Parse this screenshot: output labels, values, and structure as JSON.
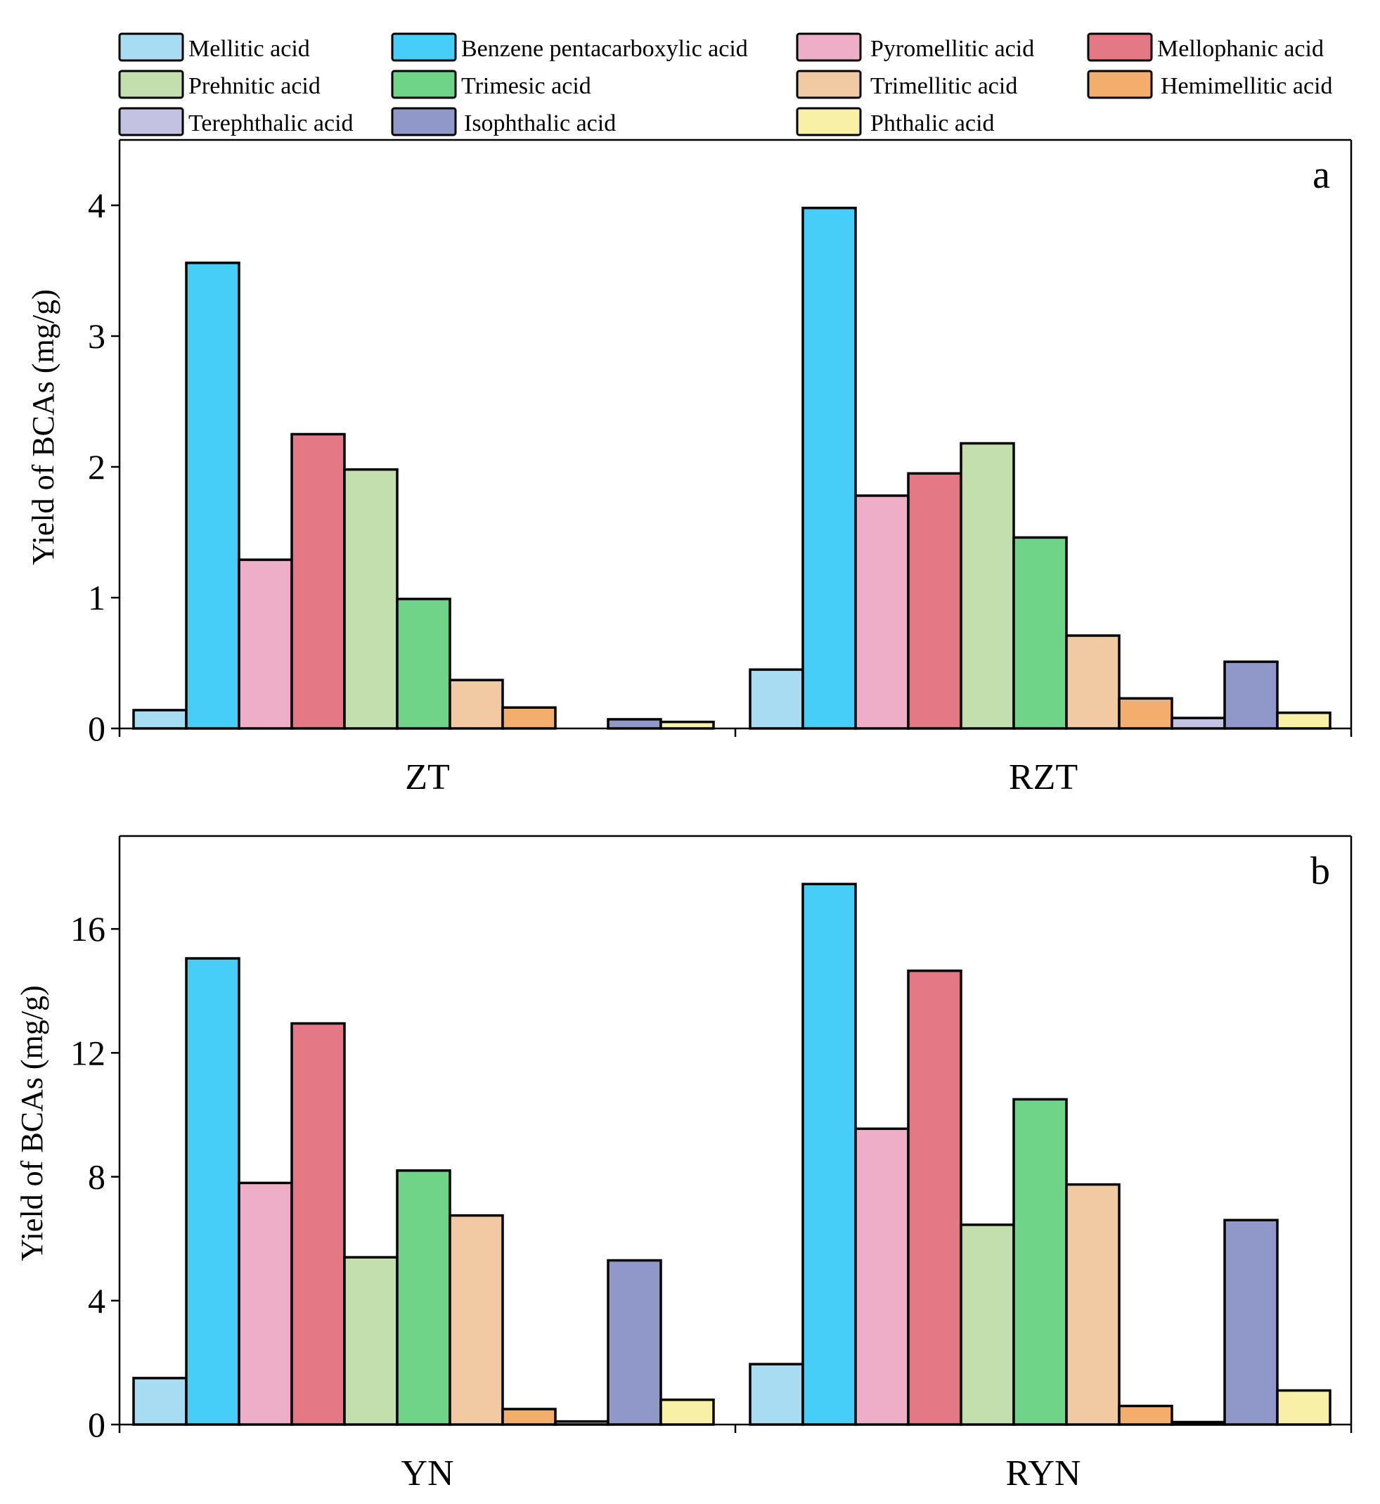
{
  "legend": {
    "items": [
      {
        "label": "Mellitic acid",
        "color": "#a8dcf2"
      },
      {
        "label": "Benzene pentacarboxylic acid",
        "color": "#46cef9"
      },
      {
        "label": "Pyromellitic acid",
        "color": "#efaec8"
      },
      {
        "label": "Mellophanic acid",
        "color": "#e47884"
      },
      {
        "label": "Prehnitic acid",
        "color": "#c3dfae"
      },
      {
        "label": "Trimesic acid",
        "color": "#6fd388"
      },
      {
        "label": "Trimellitic acid",
        "color": "#f1c9a3"
      },
      {
        "label": "Hemimellitic acid",
        "color": "#f3ae6e"
      },
      {
        "label": "Terephthalic acid",
        "color": "#c3c2e2"
      },
      {
        "label": "Isophthalic acid",
        "color": "#8f98c9"
      },
      {
        "label": "Phthalic acid",
        "color": "#f8f0a6"
      }
    ]
  },
  "chart_data": [
    {
      "type": "bar",
      "panel_label": "a",
      "ylabel": "Yield of BCAs (mg/g)",
      "ylim": [
        0,
        4.5
      ],
      "yticks": [
        0,
        1,
        2,
        3,
        4
      ],
      "categories": [
        "ZT",
        "RZT"
      ],
      "series": [
        {
          "name": "Mellitic acid",
          "values": [
            0.14,
            0.45
          ]
        },
        {
          "name": "Benzene pentacarboxylic acid",
          "values": [
            3.56,
            3.98
          ]
        },
        {
          "name": "Pyromellitic acid",
          "values": [
            1.29,
            1.78
          ]
        },
        {
          "name": "Mellophanic acid",
          "values": [
            2.25,
            1.95
          ]
        },
        {
          "name": "Prehnitic acid",
          "values": [
            1.98,
            2.18
          ]
        },
        {
          "name": "Trimesic acid",
          "values": [
            0.99,
            1.46
          ]
        },
        {
          "name": "Trimellitic acid",
          "values": [
            0.37,
            0.71
          ]
        },
        {
          "name": "Hemimellitic acid",
          "values": [
            0.16,
            0.23
          ]
        },
        {
          "name": "Terephthalic acid",
          "values": [
            0.0,
            0.08
          ]
        },
        {
          "name": "Isophthalic acid",
          "values": [
            0.07,
            0.51
          ]
        },
        {
          "name": "Phthalic acid",
          "values": [
            0.05,
            0.12
          ]
        }
      ]
    },
    {
      "type": "bar",
      "panel_label": "b",
      "ylabel": "Yield of BCAs (mg/g)",
      "ylim": [
        0,
        19
      ],
      "yticks": [
        0,
        4,
        8,
        12,
        16
      ],
      "categories": [
        "YN",
        "RYN"
      ],
      "series": [
        {
          "name": "Mellitic acid",
          "values": [
            1.5,
            1.95
          ]
        },
        {
          "name": "Benzene pentacarboxylic acid",
          "values": [
            15.05,
            17.45
          ]
        },
        {
          "name": "Pyromellitic acid",
          "values": [
            7.8,
            9.55
          ]
        },
        {
          "name": "Mellophanic acid",
          "values": [
            12.95,
            14.65
          ]
        },
        {
          "name": "Prehnitic acid",
          "values": [
            5.4,
            6.45
          ]
        },
        {
          "name": "Trimesic acid",
          "values": [
            8.2,
            10.5
          ]
        },
        {
          "name": "Trimellitic acid",
          "values": [
            6.75,
            7.75
          ]
        },
        {
          "name": "Hemimellitic acid",
          "values": [
            0.5,
            0.6
          ]
        },
        {
          "name": "Terephthalic acid",
          "values": [
            0.1,
            0.08
          ]
        },
        {
          "name": "Isophthalic acid",
          "values": [
            5.3,
            6.6
          ]
        },
        {
          "name": "Phthalic acid",
          "values": [
            0.8,
            1.1
          ]
        }
      ]
    }
  ]
}
